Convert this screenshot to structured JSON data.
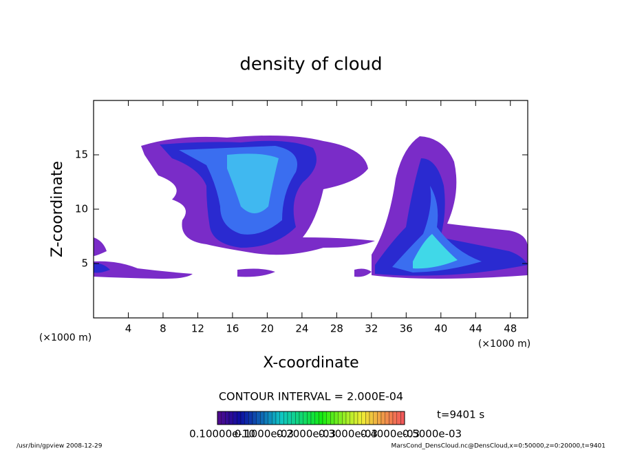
{
  "chart_data": {
    "type": "contour",
    "title": "density of cloud",
    "xlabel": "X-coordinate",
    "ylabel": "Z-coordinate",
    "x_unit_left": "(×1000 m)",
    "x_unit_right": "(×1000 m)",
    "xlim": [
      0,
      50
    ],
    "xticks": [
      4,
      8,
      12,
      16,
      20,
      24,
      28,
      32,
      36,
      40,
      44,
      48
    ],
    "ylim": [
      0,
      20
    ],
    "yticks": [
      5,
      10,
      15
    ],
    "contour_interval": "CONTOUR INTERVAL = 2.000E-04",
    "time": "t=9401 s",
    "colorbar_labels": [
      "0.10000e-10",
      "0.1000e-03",
      "0.2000e-03",
      "0.3000e-03",
      "0.4000e-03",
      "0.5000e-03"
    ],
    "footer_left": "/usr/bin/gpview   2008-12-29",
    "footer_right": "MarsCond_DensCloud.nc@DensCloud,x=0:50000,z=0:20000,t=9401"
  }
}
